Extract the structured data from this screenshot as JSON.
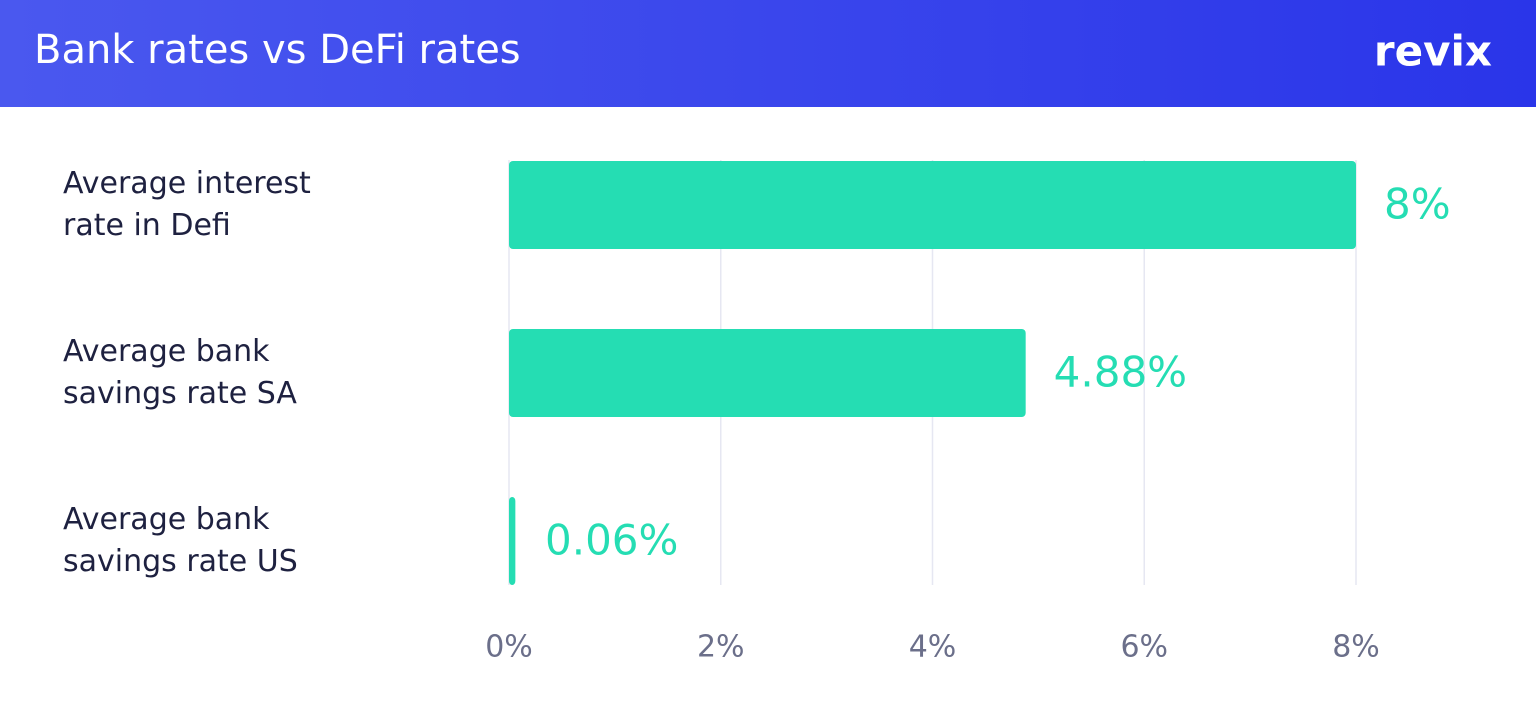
{
  "chart_data": {
    "type": "barh",
    "title": "Bank rates vs DeFi rates",
    "logo": "revix",
    "categories": [
      "Average interest\nrate in Defi",
      "Average bank\nsavings rate SA",
      "Average bank\nsavings rate US"
    ],
    "values": [
      8,
      4.88,
      0.06
    ],
    "value_labels": [
      "8%",
      "4.88%",
      "0.06%"
    ],
    "color": "#25ddb3",
    "xlim": [
      0,
      8
    ],
    "xticks": [
      {
        "value": 0,
        "label": "0%"
      },
      {
        "value": 2,
        "label": "2%"
      },
      {
        "value": 4,
        "label": "4%"
      },
      {
        "value": 6,
        "label": "6%"
      },
      {
        "value": 8,
        "label": "8%"
      }
    ],
    "grid": true
  }
}
